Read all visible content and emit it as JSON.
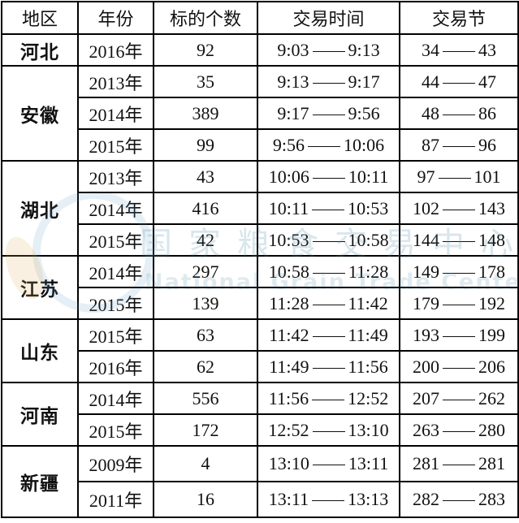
{
  "header": [
    "地区",
    "年份",
    "标的个数",
    "交易时间",
    "交易节"
  ],
  "dash": "—",
  "groups": [
    {
      "region": "河北",
      "rows": [
        {
          "year": "2016年",
          "count": "92",
          "time_start": "9:03",
          "time_end": "9:13",
          "sec_start": "34",
          "sec_end": "43"
        }
      ]
    },
    {
      "region": "安徽",
      "rows": [
        {
          "year": "2013年",
          "count": "35",
          "time_start": "9:13",
          "time_end": "9:17",
          "sec_start": "44",
          "sec_end": "47"
        },
        {
          "year": "2014年",
          "count": "389",
          "time_start": "9:17",
          "time_end": "9:56",
          "sec_start": "48",
          "sec_end": "86"
        },
        {
          "year": "2015年",
          "count": "99",
          "time_start": "9:56",
          "time_end": "10:06",
          "sec_start": "87",
          "sec_end": "96"
        }
      ]
    },
    {
      "region": "湖北",
      "rows": [
        {
          "year": "2013年",
          "count": "43",
          "time_start": "10:06",
          "time_end": "10:11",
          "sec_start": "97",
          "sec_end": "101"
        },
        {
          "year": "2014年",
          "count": "416",
          "time_start": "10:11",
          "time_end": "10:53",
          "sec_start": "102",
          "sec_end": "143"
        },
        {
          "year": "2015年",
          "count": "42",
          "time_start": "10:53",
          "time_end": "10:58",
          "sec_start": "144",
          "sec_end": "148"
        }
      ]
    },
    {
      "region": "江苏",
      "rows": [
        {
          "year": "2014年",
          "count": "297",
          "time_start": "10:58",
          "time_end": "11:28",
          "sec_start": "149",
          "sec_end": "178"
        },
        {
          "year": "2015年",
          "count": "139",
          "time_start": "11:28",
          "time_end": "11:42",
          "sec_start": "179",
          "sec_end": "192"
        }
      ]
    },
    {
      "region": "山东",
      "rows": [
        {
          "year": "2015年",
          "count": "63",
          "time_start": "11:42",
          "time_end": "11:49",
          "sec_start": "193",
          "sec_end": "199"
        },
        {
          "year": "2016年",
          "count": "62",
          "time_start": "11:49",
          "time_end": "11:56",
          "sec_start": "200",
          "sec_end": "206"
        }
      ]
    },
    {
      "region": "河南",
      "rows": [
        {
          "year": "2014年",
          "count": "556",
          "time_start": "11:56",
          "time_end": "12:52",
          "sec_start": "207",
          "sec_end": "262"
        },
        {
          "year": "2015年",
          "count": "172",
          "time_start": "12:52",
          "time_end": "13:10",
          "sec_start": "263",
          "sec_end": "280"
        }
      ]
    },
    {
      "region": "新疆",
      "rows": [
        {
          "year": "2009年",
          "count": "4",
          "time_start": "13:10",
          "time_end": "13:11",
          "sec_start": "281",
          "sec_end": "281"
        },
        {
          "year": "2011年",
          "count": "16",
          "time_start": "13:11",
          "time_end": "13:13",
          "sec_start": "282",
          "sec_end": "283"
        }
      ]
    }
  ],
  "watermark": {
    "cn": "国家粮食交易中心",
    "en": "National Grain Trade Center"
  }
}
